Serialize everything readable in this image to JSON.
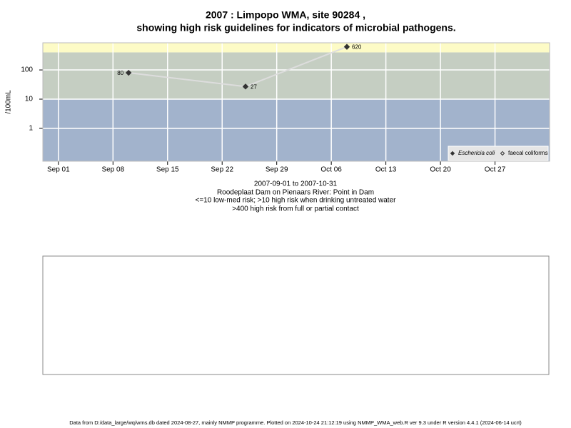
{
  "chart_data": {
    "type": "line",
    "title": [
      "2007 : Limpopo WMA, site 90284 ,",
      "showing high risk guidelines for indicators of microbial pathogens."
    ],
    "ylabel": "/100mL",
    "notes": [
      "2007-09-01 to 2007-10-31",
      "Roodeplaat Dam on Pienaars River: Point in Dam",
      "<=10 low-med risk; >10 high risk when drinking untreated water",
      ">400 high risk from full or partial contact"
    ],
    "x": [
      "2007-09-10",
      "2007-09-25",
      "2007-10-08"
    ],
    "series": [
      {
        "name": "Eschericia coli",
        "color": "#333333",
        "marker": "filled",
        "values": [
          80,
          27,
          620
        ]
      },
      {
        "name": "faecal coliforms",
        "color": "#333333",
        "marker": "hollow",
        "values": [
          null,
          null,
          null
        ]
      }
    ],
    "line_color": "#dddddd",
    "xlim": [
      "2007-08-30",
      "2007-11-03"
    ],
    "xticks": [
      {
        "value": "2007-09-01",
        "label": "Sep 01"
      },
      {
        "value": "2007-09-08",
        "label": "Sep 08"
      },
      {
        "value": "2007-09-15",
        "label": "Sep 15"
      },
      {
        "value": "2007-09-22",
        "label": "Sep 22"
      },
      {
        "value": "2007-09-29",
        "label": "Sep 29"
      },
      {
        "value": "2007-10-06",
        "label": "Oct 06"
      },
      {
        "value": "2007-10-13",
        "label": "Oct 13"
      },
      {
        "value": "2007-10-20",
        "label": "Oct 20"
      },
      {
        "value": "2007-10-27",
        "label": "Oct 27"
      }
    ],
    "ylim": [
      0.075,
      850
    ],
    "yticks": [
      1,
      10,
      100
    ],
    "log_y": true,
    "grid": true,
    "legend": "bottom-right",
    "risk_thresholds": [
      10,
      400
    ],
    "band_colors": [
      "#a2b3cc",
      "#c5cec2",
      "#fdfbc6"
    ]
  },
  "footer": "Data from D:/data_large/wq/wms.db dated 2024-08-27, mainly NMMP programme. Plotted on 2024-10-24 21:12:19 using NMMP_WMA_web.R ver 9.3 under R version 4.4.1 (2024-06-14 ucrt)"
}
